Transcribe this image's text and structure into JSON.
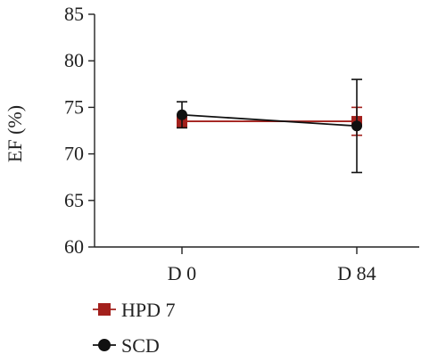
{
  "chart_data": {
    "type": "line",
    "title": "",
    "xlabel": "",
    "ylabel": "EF (%)",
    "categories": [
      "D 0",
      "D 84"
    ],
    "ylim": [
      60,
      85
    ],
    "yticks": [
      60,
      65,
      70,
      75,
      80,
      85
    ],
    "grid": false,
    "legend": "bottom-left",
    "series": [
      {
        "name": "HPD 7",
        "marker": "square",
        "color": "#a3201c",
        "values": [
          73.5,
          73.5
        ],
        "error": [
          0.6,
          1.5
        ]
      },
      {
        "name": "SCD",
        "marker": "circle",
        "color": "#111111",
        "values": [
          74.2,
          73.0
        ],
        "error": [
          1.4,
          5.0
        ]
      }
    ]
  }
}
